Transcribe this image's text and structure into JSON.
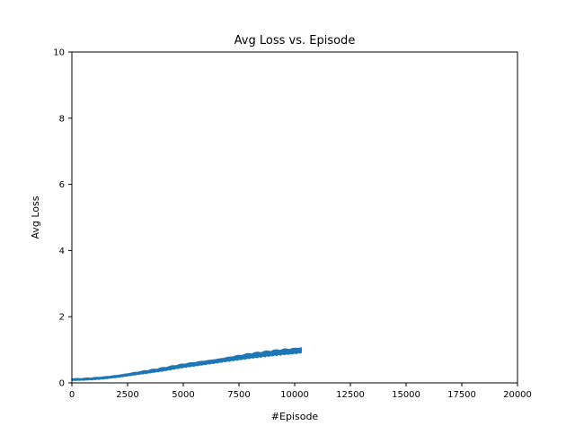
{
  "chart_data": {
    "type": "line",
    "title": "Avg Loss vs. Episode",
    "xlabel": "#Episode",
    "ylabel": "Avg Loss",
    "xlim": [
      0,
      20000
    ],
    "ylim": [
      0,
      10
    ],
    "xticks": [
      0,
      2500,
      5000,
      7500,
      10000,
      12500,
      15000,
      17500,
      20000
    ],
    "yticks": [
      0,
      2,
      4,
      6,
      8,
      10
    ],
    "grid": false,
    "legend": "none",
    "series": [
      {
        "color": "#1f77b4",
        "points": [
          [
            0,
            0.1
          ],
          [
            500,
            0.11
          ],
          [
            1000,
            0.13
          ],
          [
            1500,
            0.16
          ],
          [
            2000,
            0.2
          ],
          [
            2500,
            0.25
          ],
          [
            3000,
            0.3
          ],
          [
            3500,
            0.35
          ],
          [
            4000,
            0.4
          ],
          [
            4500,
            0.46
          ],
          [
            5000,
            0.52
          ],
          [
            5500,
            0.57
          ],
          [
            6000,
            0.62
          ],
          [
            6500,
            0.67
          ],
          [
            7000,
            0.72
          ],
          [
            7500,
            0.77
          ],
          [
            8000,
            0.82
          ],
          [
            8500,
            0.86
          ],
          [
            9000,
            0.9
          ],
          [
            9500,
            0.94
          ],
          [
            10000,
            0.97
          ],
          [
            10300,
            1.0
          ]
        ],
        "spread_low": 0.03,
        "spread_high": 0.1
      }
    ]
  }
}
